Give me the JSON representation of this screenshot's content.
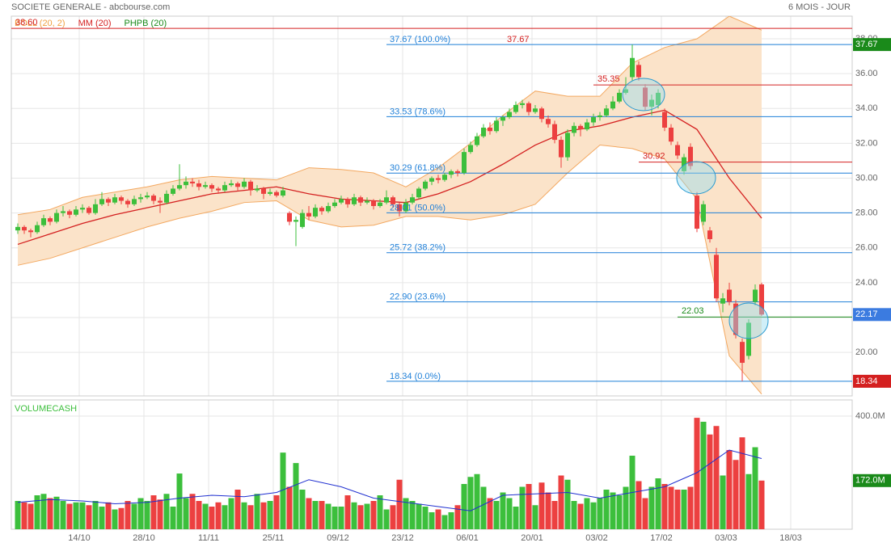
{
  "chart_data": {
    "type": "candlestick",
    "title": "SOCIETE GENERALE - abcbourse.com",
    "period": "6 MOIS - JOUR",
    "legend": [
      {
        "name": "BOLL (20, 2)",
        "color": "#f0a040"
      },
      {
        "name": "MM (20)",
        "color": "#d42020"
      },
      {
        "name": "PHPB (20)",
        "color": "#1a8a1a"
      }
    ],
    "volume_title": "VOLUMECASH",
    "colors": {
      "up": "#3cbf3c",
      "down": "#ec4040",
      "band": "#fbe3c9",
      "band_line": "#f3a860",
      "ma": "#d42020",
      "fib": "#1e7fd8",
      "volume_ma": "#2030d0"
    },
    "xlim": [
      -1,
      129
    ],
    "xticks": [
      {
        "value": 9.5,
        "label": "14/10"
      },
      {
        "value": 19.5,
        "label": "28/10"
      },
      {
        "value": 29.5,
        "label": "11/11"
      },
      {
        "value": 39.5,
        "label": "25/11"
      },
      {
        "value": 49.5,
        "label": "09/12"
      },
      {
        "value": 59.5,
        "label": "23/12"
      },
      {
        "value": 69.5,
        "label": "06/01"
      },
      {
        "value": 79.5,
        "label": "20/01"
      },
      {
        "value": 89.5,
        "label": "03/02"
      },
      {
        "value": 99.5,
        "label": "17/02"
      },
      {
        "value": 109.5,
        "label": "03/03"
      },
      {
        "value": 119.5,
        "label": "18/03"
      }
    ],
    "ylim": [
      17.5,
      39.3
    ],
    "yticks": [
      {
        "value": 20,
        "label": "20.00"
      },
      {
        "value": 22,
        "label": "22.00"
      },
      {
        "value": 24,
        "label": "24.00"
      },
      {
        "value": 26,
        "label": "26.00"
      },
      {
        "value": 28,
        "label": "28.00"
      },
      {
        "value": 30,
        "label": "30.00"
      },
      {
        "value": 32,
        "label": "32.00"
      },
      {
        "value": 34,
        "label": "34.00"
      },
      {
        "value": 36,
        "label": "36.00"
      },
      {
        "value": 38,
        "label": "38.00"
      }
    ],
    "ohlc": [
      [
        27.0,
        27.4,
        26.8,
        27.2
      ],
      [
        27.2,
        27.3,
        26.8,
        27.0
      ],
      [
        27.0,
        27.1,
        26.6,
        26.9
      ],
      [
        26.9,
        27.5,
        26.8,
        27.3
      ],
      [
        27.3,
        27.9,
        27.2,
        27.7
      ],
      [
        27.7,
        27.8,
        27.3,
        27.5
      ],
      [
        27.5,
        28.2,
        27.4,
        28.0
      ],
      [
        28.0,
        28.4,
        27.8,
        28.1
      ],
      [
        28.1,
        28.2,
        27.7,
        27.9
      ],
      [
        27.9,
        28.4,
        27.8,
        28.2
      ],
      [
        28.2,
        28.5,
        28.0,
        28.3
      ],
      [
        28.3,
        28.4,
        27.9,
        28.0
      ],
      [
        28.0,
        28.8,
        27.9,
        28.5
      ],
      [
        28.5,
        29.2,
        28.4,
        28.8
      ],
      [
        28.8,
        28.9,
        28.4,
        28.6
      ],
      [
        28.6,
        29.1,
        28.5,
        28.9
      ],
      [
        28.9,
        29.0,
        28.5,
        28.7
      ],
      [
        28.7,
        28.8,
        28.3,
        28.5
      ],
      [
        28.5,
        29.0,
        28.4,
        28.8
      ],
      [
        28.8,
        29.1,
        28.6,
        28.9
      ],
      [
        28.9,
        29.2,
        28.8,
        29.0
      ],
      [
        29.0,
        29.1,
        28.5,
        28.7
      ],
      [
        28.7,
        28.9,
        28.0,
        28.6
      ],
      [
        28.6,
        29.3,
        28.5,
        29.1
      ],
      [
        29.1,
        29.6,
        29.0,
        29.4
      ],
      [
        29.4,
        30.8,
        29.3,
        29.6
      ],
      [
        29.6,
        30.1,
        29.4,
        29.8
      ],
      [
        29.8,
        30.0,
        29.5,
        29.7
      ],
      [
        29.7,
        29.9,
        29.3,
        29.5
      ],
      [
        29.5,
        29.8,
        29.4,
        29.6
      ],
      [
        29.6,
        29.7,
        29.2,
        29.4
      ],
      [
        29.4,
        29.5,
        29.1,
        29.3
      ],
      [
        29.3,
        29.8,
        29.2,
        29.6
      ],
      [
        29.6,
        29.9,
        29.5,
        29.7
      ],
      [
        29.7,
        29.8,
        29.3,
        29.5
      ],
      [
        29.5,
        30.0,
        29.4,
        29.8
      ],
      [
        29.8,
        29.9,
        29.0,
        29.3
      ],
      [
        29.3,
        29.6,
        29.2,
        29.4
      ],
      [
        29.4,
        29.5,
        28.8,
        29.1
      ],
      [
        29.1,
        29.4,
        29.0,
        29.2
      ],
      [
        29.2,
        29.3,
        28.9,
        29.0
      ],
      [
        29.0,
        29.5,
        28.9,
        29.3
      ],
      [
        28.0,
        28.1,
        27.3,
        27.5
      ],
      [
        27.5,
        27.8,
        26.1,
        27.6
      ],
      [
        27.2,
        28.2,
        27.1,
        28.0
      ],
      [
        28.0,
        28.4,
        27.6,
        27.8
      ],
      [
        27.8,
        28.5,
        27.7,
        28.3
      ],
      [
        28.3,
        28.4,
        27.9,
        28.1
      ],
      [
        28.1,
        28.6,
        28.0,
        28.4
      ],
      [
        28.4,
        28.8,
        28.3,
        28.6
      ],
      [
        28.6,
        29.0,
        28.5,
        28.8
      ],
      [
        28.8,
        28.9,
        28.3,
        28.5
      ],
      [
        28.5,
        29.1,
        28.4,
        28.9
      ],
      [
        28.9,
        29.0,
        28.4,
        28.6
      ],
      [
        28.6,
        28.9,
        28.5,
        28.7
      ],
      [
        28.7,
        28.8,
        28.2,
        28.4
      ],
      [
        28.4,
        28.8,
        28.3,
        28.6
      ],
      [
        28.6,
        29.3,
        28.5,
        28.9
      ],
      [
        28.9,
        29.0,
        28.3,
        28.5
      ],
      [
        28.5,
        28.6,
        27.8,
        28.1
      ],
      [
        28.1,
        28.8,
        28.0,
        28.6
      ],
      [
        28.6,
        29.1,
        28.5,
        28.9
      ],
      [
        28.9,
        29.5,
        28.8,
        29.4
      ],
      [
        29.4,
        29.9,
        29.3,
        29.8
      ],
      [
        29.8,
        30.1,
        29.6,
        30.0
      ],
      [
        30.0,
        30.2,
        29.7,
        29.9
      ],
      [
        29.9,
        30.3,
        29.8,
        30.2
      ],
      [
        30.2,
        30.5,
        30.0,
        30.4
      ],
      [
        30.4,
        30.5,
        30.1,
        30.3
      ],
      [
        30.3,
        31.7,
        30.2,
        31.5
      ],
      [
        31.5,
        32.1,
        31.4,
        31.9
      ],
      [
        31.9,
        32.6,
        31.8,
        32.4
      ],
      [
        32.4,
        33.1,
        32.3,
        32.9
      ],
      [
        32.9,
        33.2,
        32.5,
        32.7
      ],
      [
        32.7,
        33.5,
        32.6,
        33.3
      ],
      [
        33.3,
        33.6,
        33.0,
        33.5
      ],
      [
        33.5,
        34.0,
        33.4,
        33.8
      ],
      [
        33.8,
        34.4,
        33.7,
        34.2
      ],
      [
        34.2,
        34.5,
        34.0,
        34.3
      ],
      [
        34.3,
        34.4,
        33.6,
        33.8
      ],
      [
        33.8,
        34.2,
        33.7,
        34.0
      ],
      [
        34.0,
        34.1,
        33.2,
        33.4
      ],
      [
        33.4,
        33.6,
        32.9,
        33.1
      ],
      [
        33.1,
        33.3,
        32.0,
        32.2
      ],
      [
        32.2,
        32.4,
        30.6,
        31.2
      ],
      [
        31.2,
        32.8,
        31.0,
        32.6
      ],
      [
        32.6,
        33.2,
        32.4,
        33.0
      ],
      [
        33.0,
        33.1,
        32.4,
        32.8
      ],
      [
        32.8,
        33.4,
        32.7,
        33.2
      ],
      [
        33.2,
        33.7,
        33.0,
        33.5
      ],
      [
        33.5,
        33.8,
        33.3,
        33.6
      ],
      [
        33.6,
        34.2,
        33.5,
        34.0
      ],
      [
        34.0,
        34.7,
        33.9,
        34.4
      ],
      [
        34.4,
        35.1,
        34.3,
        34.9
      ],
      [
        34.9,
        35.8,
        34.8,
        35.1
      ],
      [
        35.8,
        37.67,
        35.6,
        36.9
      ],
      [
        36.5,
        36.7,
        35.6,
        35.8
      ],
      [
        35.2,
        35.4,
        33.9,
        34.1
      ],
      [
        34.1,
        34.8,
        33.6,
        34.5
      ],
      [
        34.2,
        35.1,
        34.0,
        34.9
      ],
      [
        33.8,
        34.0,
        32.7,
        32.9
      ],
      [
        32.9,
        33.1,
        31.9,
        32.1
      ],
      [
        31.9,
        32.1,
        31.1,
        31.3
      ],
      [
        30.4,
        31.4,
        30.2,
        31.2
      ],
      [
        31.8,
        32.0,
        30.5,
        30.7
      ],
      [
        29.0,
        29.2,
        26.9,
        27.1
      ],
      [
        27.5,
        28.7,
        27.3,
        28.5
      ],
      [
        27.0,
        27.2,
        26.3,
        26.5
      ],
      [
        25.6,
        26.0,
        22.9,
        23.1
      ],
      [
        22.8,
        23.4,
        22.3,
        23.1
      ],
      [
        23.6,
        24.0,
        22.7,
        22.9
      ],
      [
        22.8,
        23.0,
        20.8,
        21.0
      ],
      [
        20.6,
        20.8,
        18.34,
        19.4
      ],
      [
        19.8,
        21.9,
        19.6,
        21.7
      ],
      [
        22.9,
        23.9,
        22.7,
        23.6
      ],
      [
        23.9,
        24.0,
        22.1,
        22.17
      ]
    ],
    "ma": {
      "x": [
        0,
        5,
        10,
        15,
        20,
        25,
        30,
        35,
        40,
        45,
        50,
        55,
        60,
        65,
        70,
        75,
        80,
        85,
        90,
        95,
        100,
        105,
        110,
        115
      ],
      "values": [
        26.2,
        26.8,
        27.4,
        27.9,
        28.3,
        28.7,
        29.1,
        29.3,
        29.5,
        29.1,
        28.8,
        28.7,
        28.6,
        29.1,
        29.8,
        30.8,
        31.9,
        32.7,
        33.0,
        33.5,
        33.9,
        32.8,
        30.0,
        27.7
      ]
    },
    "bands": {
      "x": [
        0,
        5,
        10,
        15,
        20,
        25,
        30,
        35,
        40,
        45,
        50,
        55,
        60,
        65,
        70,
        75,
        80,
        85,
        90,
        95,
        100,
        105,
        110,
        115
      ],
      "upper": [
        27.9,
        28.2,
        28.9,
        29.2,
        29.5,
        29.9,
        30.1,
        30.0,
        29.9,
        30.6,
        30.5,
        30.3,
        29.5,
        30.6,
        32.0,
        33.6,
        35.0,
        34.7,
        34.7,
        36.6,
        37.5,
        38.0,
        39.3,
        38.5
      ],
      "lower": [
        25.0,
        25.4,
        26.0,
        26.6,
        27.2,
        27.7,
        28.1,
        28.6,
        28.7,
        27.6,
        27.2,
        27.3,
        27.8,
        27.8,
        27.6,
        27.9,
        28.5,
        30.3,
        31.9,
        31.7,
        31.1,
        28.8,
        19.8,
        17.6
      ]
    },
    "fib_levels": [
      {
        "value": 37.67,
        "label": "37.67  (100.0%)"
      },
      {
        "value": 33.53,
        "label": "33.53  (78.6%)"
      },
      {
        "value": 30.29,
        "label": "30.29  (61.8%)"
      },
      {
        "value": 28.01,
        "label": "28.01  (50.0%)"
      },
      {
        "value": 25.72,
        "label": "25.72  (38.2%)"
      },
      {
        "value": 22.9,
        "label": "22.90  (23.6%)"
      },
      {
        "value": 18.34,
        "label": "18.34  (0.0%)"
      }
    ],
    "fib_start": 57,
    "high_label": "37.67",
    "levels": [
      {
        "value": 38.6,
        "label": "38.60",
        "color": "#d42020",
        "start": -1
      },
      {
        "value": 35.35,
        "label": "35.35",
        "color": "#d42020",
        "start": 89
      },
      {
        "value": 30.92,
        "label": "30.92",
        "color": "#d42020",
        "start": 96
      },
      {
        "value": 22.03,
        "label": "22.03",
        "color": "#1a8a1a",
        "start": 102
      }
    ],
    "volume": [
      100,
      95,
      90,
      120,
      125,
      110,
      115,
      100,
      90,
      95,
      95,
      85,
      100,
      80,
      95,
      70,
      75,
      100,
      90,
      110,
      100,
      120,
      105,
      125,
      80,
      197,
      110,
      125,
      100,
      90,
      80,
      95,
      85,
      110,
      140,
      95,
      85,
      125,
      95,
      100,
      120,
      271,
      150,
      234,
      140,
      110,
      100,
      100,
      90,
      80,
      80,
      120,
      95,
      85,
      90,
      100,
      120,
      70,
      85,
      175,
      110,
      100,
      90,
      80,
      60,
      70,
      50,
      60,
      85,
      160,
      185,
      195,
      150,
      110,
      100,
      130,
      110,
      80,
      150,
      160,
      85,
      165,
      130,
      100,
      190,
      175,
      100,
      90,
      110,
      95,
      110,
      140,
      130,
      120,
      150,
      260,
      170,
      110,
      150,
      180,
      160,
      150,
      140,
      140,
      150,
      394,
      380,
      335,
      365,
      190,
      280,
      245,
      325,
      195,
      290,
      172
    ],
    "volume_ma": {
      "x": [
        0,
        5,
        10,
        15,
        20,
        25,
        30,
        35,
        40,
        45,
        50,
        55,
        60,
        65,
        70,
        75,
        80,
        85,
        90,
        95,
        100,
        105,
        110,
        115
      ],
      "values": [
        95,
        105,
        100,
        90,
        95,
        110,
        120,
        115,
        130,
        175,
        150,
        110,
        95,
        80,
        65,
        120,
        125,
        130,
        110,
        130,
        150,
        200,
        280,
        250
      ]
    },
    "volume_ylim": [
      0,
      450
    ],
    "volume_yticks": [
      {
        "value": 400,
        "label": "400.0M"
      }
    ],
    "volume_last_label": "172.0M"
  }
}
